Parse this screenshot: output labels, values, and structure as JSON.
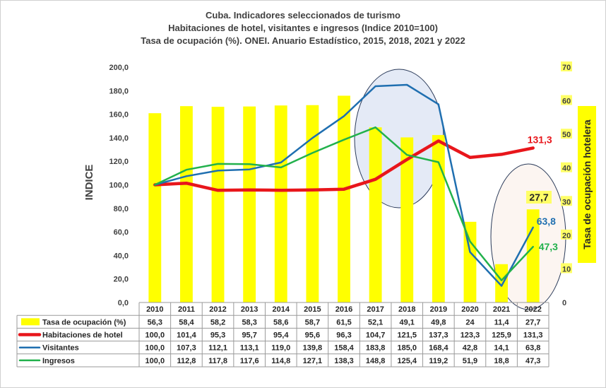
{
  "title": {
    "line1": "Cuba. Indicadores seleccionados de turismo",
    "line2": "Habitaciones de hotel, visitantes e ingresos (Indice 2010=100)",
    "line3": "Tasa de ocupación (%). ONEI. Anuario Estadístico, 2015, 2018, 2021 y 2022"
  },
  "chart_data": {
    "type": "bar+line",
    "title": "Cuba. Indicadores seleccionados de turismo / Habitaciones de hotel, visitantes e ingresos (Indice 2010=100) / Tasa de ocupación (%). ONEI. Anuario Estadístico, 2015, 2018, 2021 y 2022",
    "ylabel": "INDICE",
    "y2label": "Tasa de ocupación hotelera",
    "ylim": [
      0,
      200
    ],
    "y2lim": [
      0,
      70
    ],
    "yticks": [
      "0,0",
      "20,0",
      "40,0",
      "60,0",
      "80,0",
      "100,0",
      "120,0",
      "140,0",
      "160,0",
      "180,0",
      "200,0"
    ],
    "y2ticks": [
      "0",
      "10",
      "20",
      "30",
      "40",
      "50",
      "60",
      "70"
    ],
    "grid": false,
    "legend": "data-table-left",
    "categories": [
      "2010",
      "2011",
      "2012",
      "2013",
      "2014",
      "2015",
      "2016",
      "2017",
      "2018",
      "2019",
      "2020",
      "2021",
      "2022"
    ],
    "series": [
      {
        "name": "Tasa de ocupación (%)",
        "type": "bar",
        "axis": "right",
        "color": "#ffff00",
        "values": [
          56.3,
          58.4,
          58.2,
          58.3,
          58.6,
          58.7,
          61.5,
          52.1,
          49.1,
          49.8,
          24,
          11.4,
          27.7
        ],
        "labels": [
          "56,3",
          "58,4",
          "58,2",
          "58,3",
          "58,6",
          "58,7",
          "61,5",
          "52,1",
          "49,1",
          "49,8",
          "24",
          "11,4",
          "27,7"
        ]
      },
      {
        "name": "Habitaciones de hotel",
        "type": "line",
        "axis": "left",
        "color": "#e8161b",
        "values": [
          100.0,
          101.4,
          95.3,
          95.7,
          95.4,
          95.6,
          96.3,
          104.7,
          121.5,
          137.3,
          123.3,
          125.9,
          131.3
        ],
        "labels": [
          "100,0",
          "101,4",
          "95,3",
          "95,7",
          "95,4",
          "95,6",
          "96,3",
          "104,7",
          "121,5",
          "137,3",
          "123,3",
          "125,9",
          "131,3"
        ]
      },
      {
        "name": "Visitantes",
        "type": "line",
        "axis": "left",
        "color": "#1f6fb0",
        "values": [
          100.0,
          107.3,
          112.1,
          113.1,
          119.0,
          139.8,
          158.4,
          183.8,
          185.0,
          168.4,
          42.8,
          14.1,
          63.8
        ],
        "labels": [
          "100,0",
          "107,3",
          "112,1",
          "113,1",
          "119,0",
          "139,8",
          "158,4",
          "183,8",
          "185,0",
          "168,4",
          "42,8",
          "14,1",
          "63,8"
        ]
      },
      {
        "name": "Ingresos",
        "type": "line",
        "axis": "left",
        "color": "#22b14c",
        "values": [
          100.0,
          112.8,
          117.8,
          117.6,
          114.8,
          127.1,
          138.3,
          148.8,
          125.4,
          119.2,
          51.9,
          18.8,
          47.3
        ],
        "labels": [
          "100,0",
          "112,8",
          "117,8",
          "117,6",
          "114,8",
          "127,1",
          "138,3",
          "148,8",
          "125,4",
          "119,2",
          "51,9",
          "18,8",
          "47,3"
        ]
      }
    ],
    "annotations": [
      {
        "text": "131,3",
        "series": "Habitaciones de hotel",
        "category": "2022",
        "color": "#e8161b"
      },
      {
        "text": "27,7",
        "series": "Tasa de ocupación (%)",
        "category": "2022",
        "color": "#262626"
      },
      {
        "text": "63,8",
        "series": "Visitantes",
        "category": "2022",
        "color": "#1f6fb0"
      },
      {
        "text": "47,3",
        "series": "Ingresos",
        "category": "2022",
        "color": "#22b14c"
      }
    ],
    "highlights": [
      {
        "shape": "ellipse",
        "around": [
          "2017",
          "2019"
        ]
      },
      {
        "shape": "ellipse",
        "around": [
          "2021",
          "2022"
        ]
      }
    ]
  }
}
